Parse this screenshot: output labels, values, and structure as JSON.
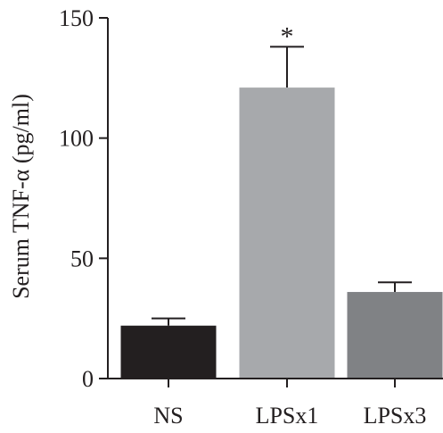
{
  "chart_data": {
    "type": "bar",
    "ylabel": "Serum TNF-α (pg/ml)",
    "ylim": [
      0,
      150
    ],
    "yticks": [
      0,
      50,
      100,
      150
    ],
    "categories": [
      "NS",
      "LPSx1",
      "LPSx3"
    ],
    "values": [
      22,
      121,
      36
    ],
    "errors": [
      3,
      17,
      4
    ],
    "colors": [
      "#231f20",
      "#a7a9ac",
      "#808285"
    ],
    "annotations": [
      {
        "category": "LPSx1",
        "text": "*"
      }
    ],
    "legend": "none",
    "grid": false
  }
}
